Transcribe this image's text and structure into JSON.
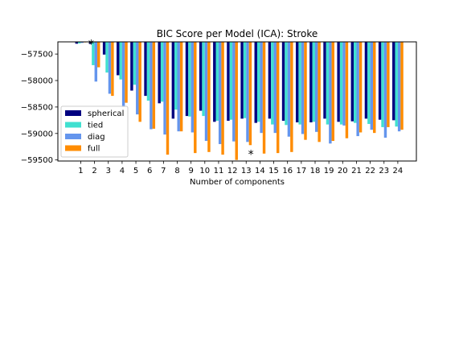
{
  "chart_data": {
    "type": "bar",
    "title": "BIC Score per Model (ICA): Stroke",
    "xlabel": "Number of components",
    "ylabel": "",
    "categories": [
      "1",
      "2",
      "3",
      "4",
      "5",
      "6",
      "7",
      "8",
      "9",
      "10",
      "11",
      "12",
      "13",
      "14",
      "15",
      "16",
      "17",
      "18",
      "19",
      "20",
      "21",
      "22",
      "23",
      "24"
    ],
    "ylim": [
      -59520,
      -57270
    ],
    "yticks": [
      -57500,
      -58000,
      -58500,
      -59000,
      -59500
    ],
    "ytick_labels": [
      "−57500",
      "−58000",
      "−58500",
      "−59000",
      "−59500"
    ],
    "legend_position": "lower-left",
    "grid": false,
    "series": [
      {
        "name": "spherical",
        "color": "#000080",
        "values": [
          -57305,
          -57310,
          -57510,
          -57900,
          -58190,
          -58290,
          -58430,
          -58720,
          -58670,
          -58570,
          -58780,
          -58760,
          -58720,
          -58800,
          -58720,
          -58760,
          -58790,
          -58790,
          -58720,
          -58780,
          -58770,
          -58720,
          -58740,
          -58750
        ]
      },
      {
        "name": "tied",
        "color": "#40e0d0",
        "values": [
          -57300,
          -57710,
          -57850,
          -57980,
          -58080,
          -58380,
          -58400,
          -58550,
          -58680,
          -58670,
          -58760,
          -58740,
          -58710,
          -58780,
          -58830,
          -58840,
          -58830,
          -58780,
          -58830,
          -58830,
          -58800,
          -58820,
          -58880,
          -58870
        ]
      },
      {
        "name": "diag",
        "color": "#6495ed",
        "values": [
          -57290,
          -58020,
          -58250,
          -58500,
          -58640,
          -58920,
          -59020,
          -58960,
          -58980,
          -59140,
          -59200,
          -59150,
          -59160,
          -58990,
          -58990,
          -59060,
          -59010,
          -58970,
          -59190,
          -58850,
          -59050,
          -58930,
          -59080,
          -58960
        ]
      },
      {
        "name": "full",
        "color": "#ff8c00",
        "values": [
          -57280,
          -57750,
          -58290,
          -58420,
          -58780,
          -58910,
          -59400,
          -58960,
          -59370,
          -59350,
          -59400,
          -59500,
          -59220,
          -59380,
          -59370,
          -59350,
          -59120,
          -59160,
          -59140,
          -59090,
          -58980,
          -58990,
          -58880,
          -58930
        ]
      }
    ],
    "annotations": [
      {
        "text": "*",
        "x": "12",
        "y": -59420
      },
      {
        "text": "*",
        "x": "1",
        "y": -57290
      }
    ]
  }
}
